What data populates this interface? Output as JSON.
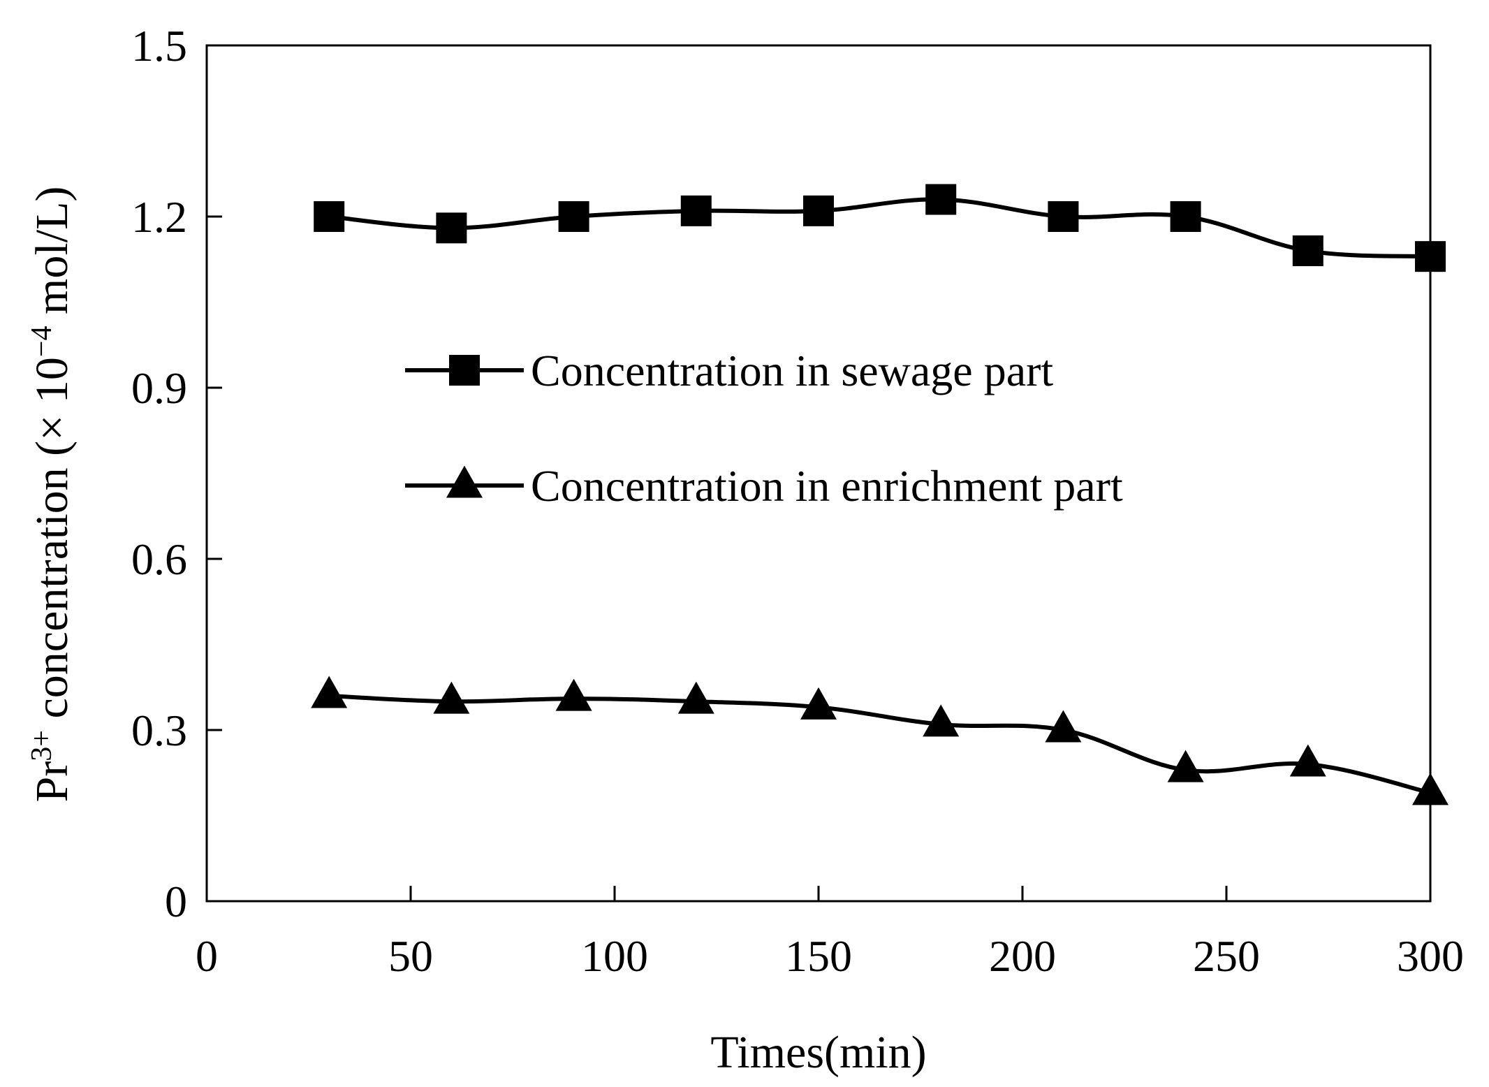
{
  "chart_data": {
    "type": "line",
    "title": "",
    "xlabel": "Times(min)",
    "ylabel": {
      "prefix": "Pr",
      "superscript": "3+",
      "main": " concentration (",
      "times": "×",
      "ten": " 10",
      "exponent": "−4",
      "unit": " mol/L)"
    },
    "xlim": [
      0,
      300
    ],
    "ylim": [
      0,
      1.5
    ],
    "x_ticks": [
      0,
      50,
      100,
      150,
      200,
      250,
      300
    ],
    "y_ticks": [
      0,
      0.3,
      0.6,
      0.9,
      1.2,
      1.5
    ],
    "x_tick_labels": [
      "0",
      "50",
      "100",
      "150",
      "200",
      "250",
      "300"
    ],
    "y_tick_labels": [
      "0",
      "0.3",
      "0.6",
      "0.9",
      "1.2",
      "1.5"
    ],
    "grid": false,
    "legend_position": "center-left",
    "x": [
      30,
      60,
      90,
      120,
      150,
      180,
      210,
      240,
      270,
      300
    ],
    "series": [
      {
        "name": "Concentration in sewage part",
        "marker": "square",
        "color": "#000000",
        "values": [
          1.2,
          1.18,
          1.2,
          1.21,
          1.21,
          1.23,
          1.2,
          1.2,
          1.14,
          1.13
        ]
      },
      {
        "name": "Concentration in enrichment part",
        "marker": "triangle",
        "color": "#000000",
        "values": [
          0.36,
          0.35,
          0.355,
          0.35,
          0.34,
          0.31,
          0.3,
          0.23,
          0.24,
          0.19
        ]
      }
    ]
  }
}
